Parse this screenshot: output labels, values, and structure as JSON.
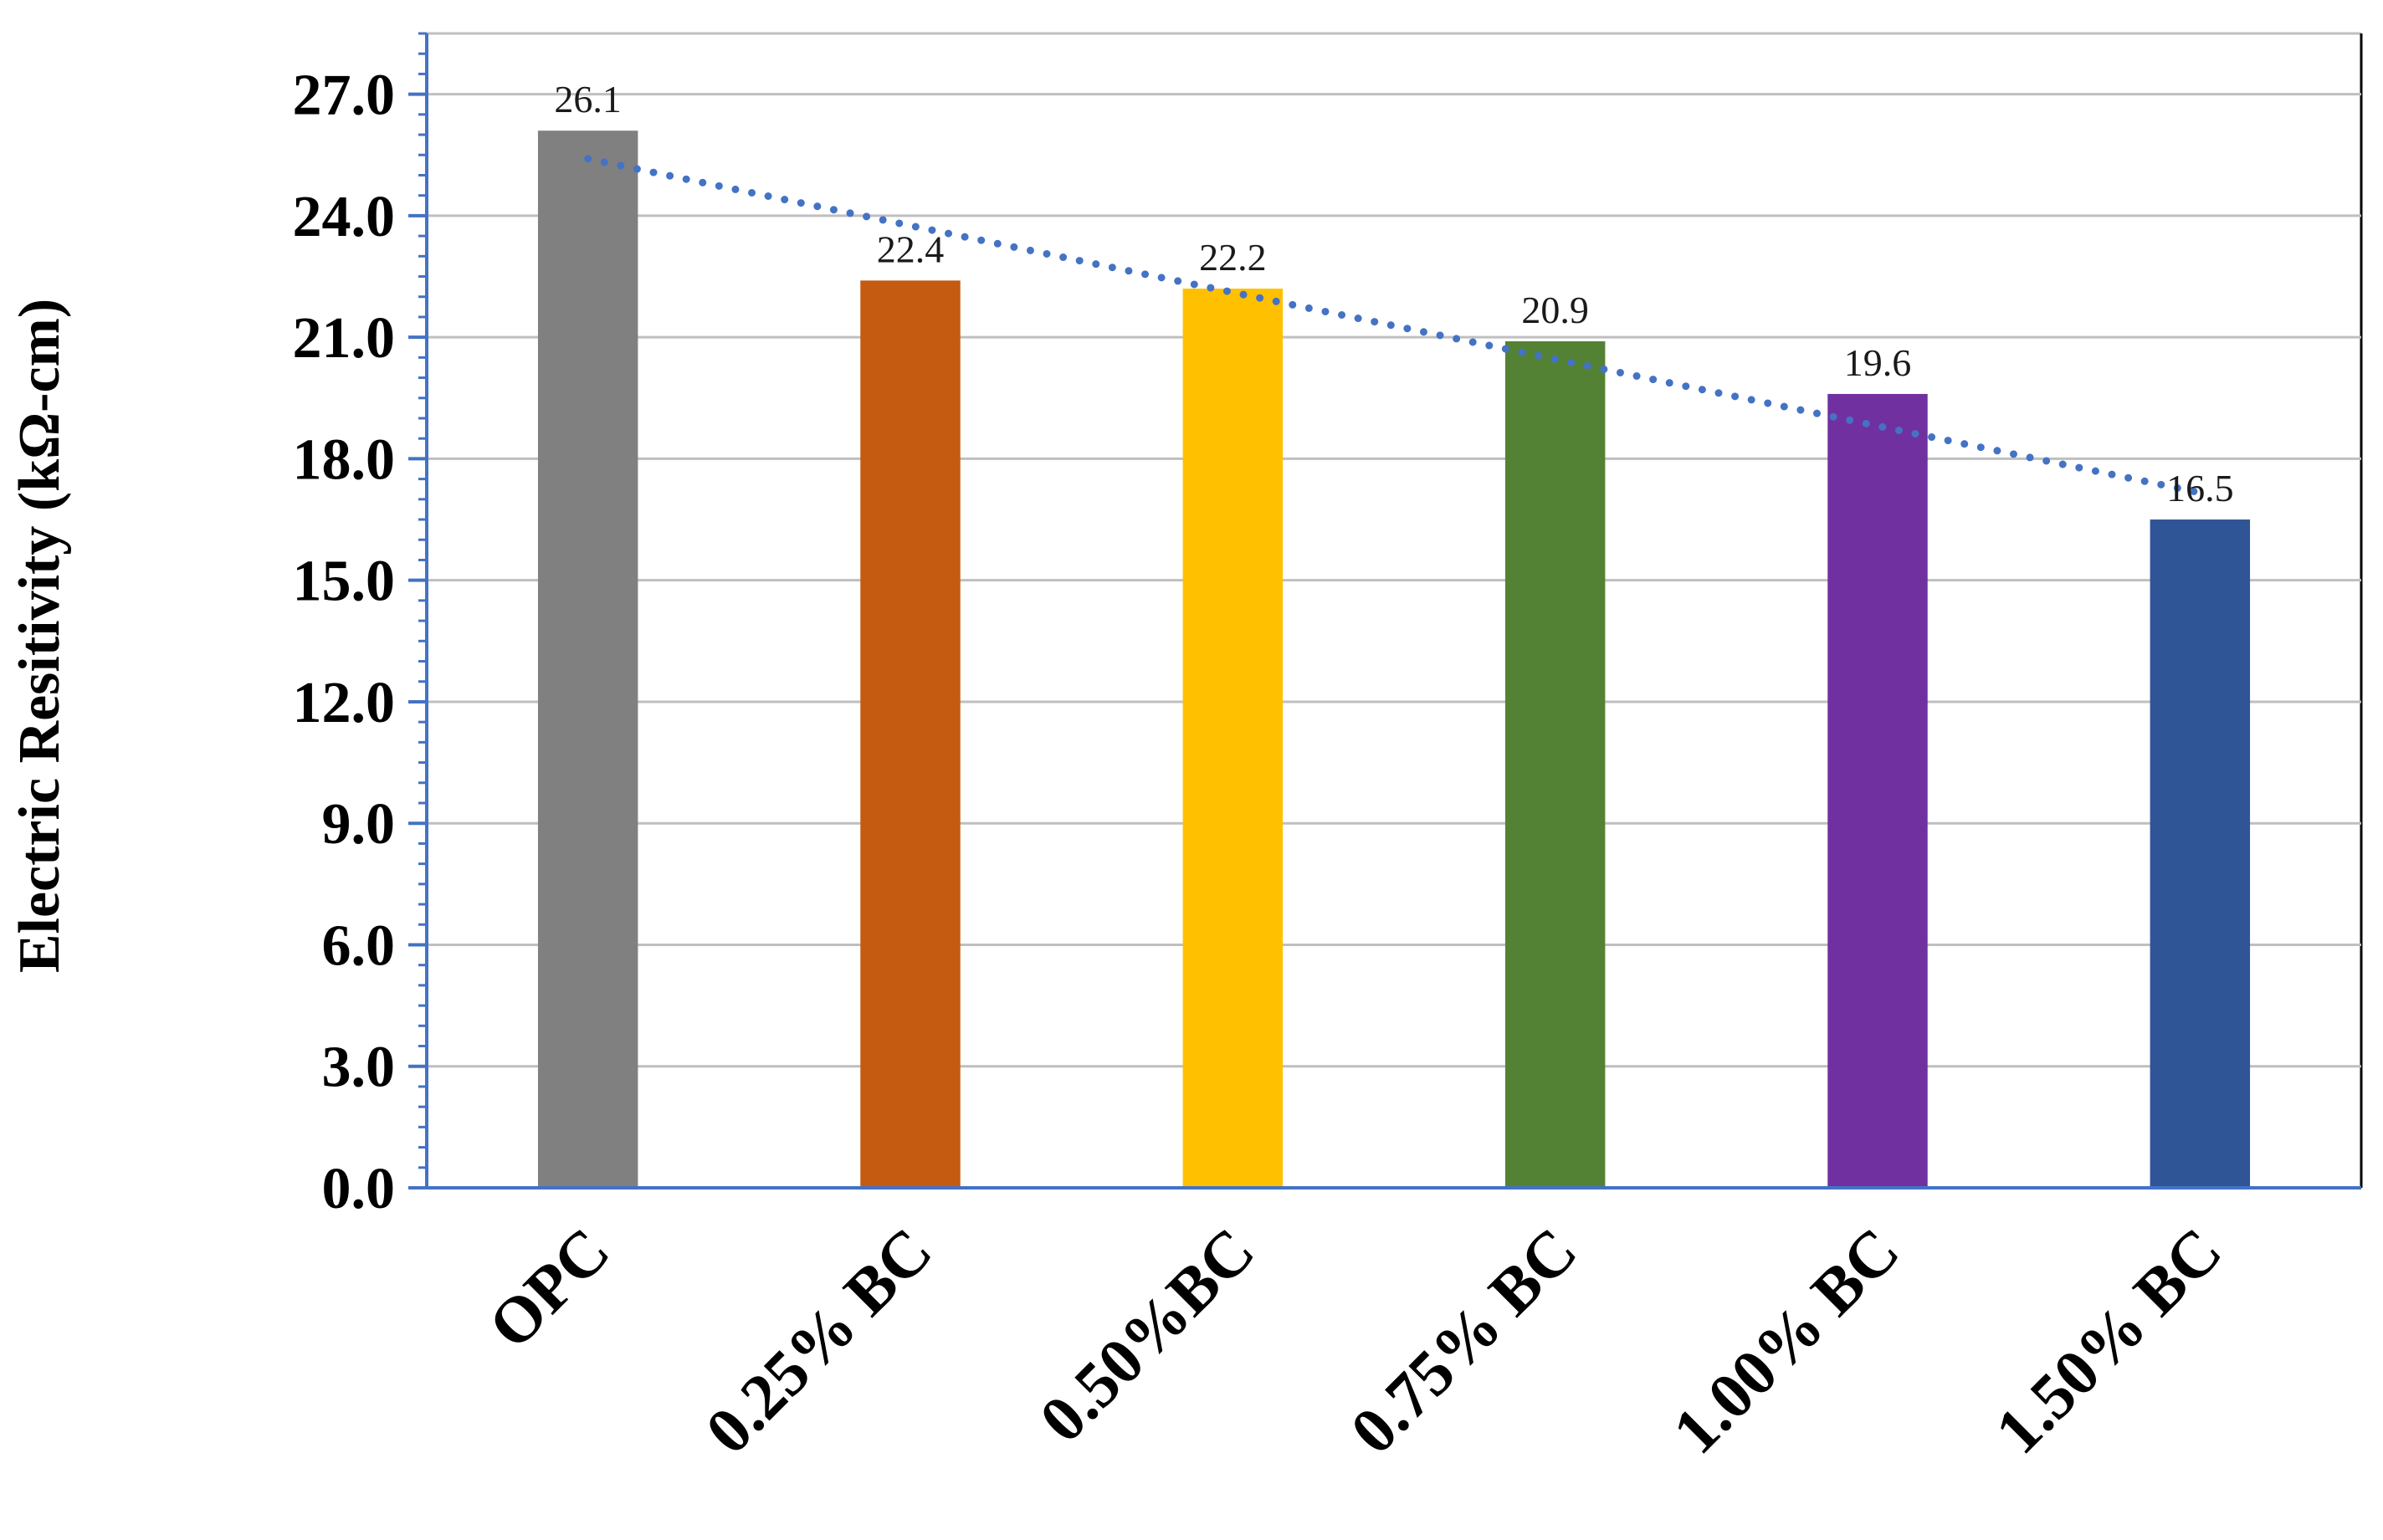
{
  "chart_data": {
    "type": "bar",
    "title": "",
    "xlabel": "",
    "ylabel": "Electric Resitivity (kΩ-cm)",
    "categories": [
      "OPC",
      "0.25% BC",
      "0.50%BC",
      "0.75% BC",
      "1.00% BC",
      "1.50% BC"
    ],
    "values": [
      26.1,
      22.4,
      22.2,
      20.9,
      19.6,
      16.5
    ],
    "data_labels": [
      "26.1",
      "22.4",
      "22.2",
      "20.9",
      "19.6",
      "16.5"
    ],
    "bar_colors": [
      "#808080",
      "#C55A11",
      "#FFC000",
      "#548235",
      "#7030A0",
      "#2F5597"
    ],
    "ylim": [
      0,
      28.5
    ],
    "yticks": [
      0,
      3,
      6,
      9,
      12,
      15,
      18,
      21,
      24,
      27
    ],
    "ytick_labels": [
      "0.0",
      "3.0",
      "6.0",
      "9.0",
      "12.0",
      "15.0",
      "18.0",
      "21.0",
      "24.0",
      "27.0"
    ],
    "grid": true,
    "legend": "none",
    "trendline": {
      "type": "linear",
      "style": "dotted",
      "color": "#4472C4"
    },
    "axis_color": "#4472C4",
    "grid_color": "#BFBFBF"
  }
}
